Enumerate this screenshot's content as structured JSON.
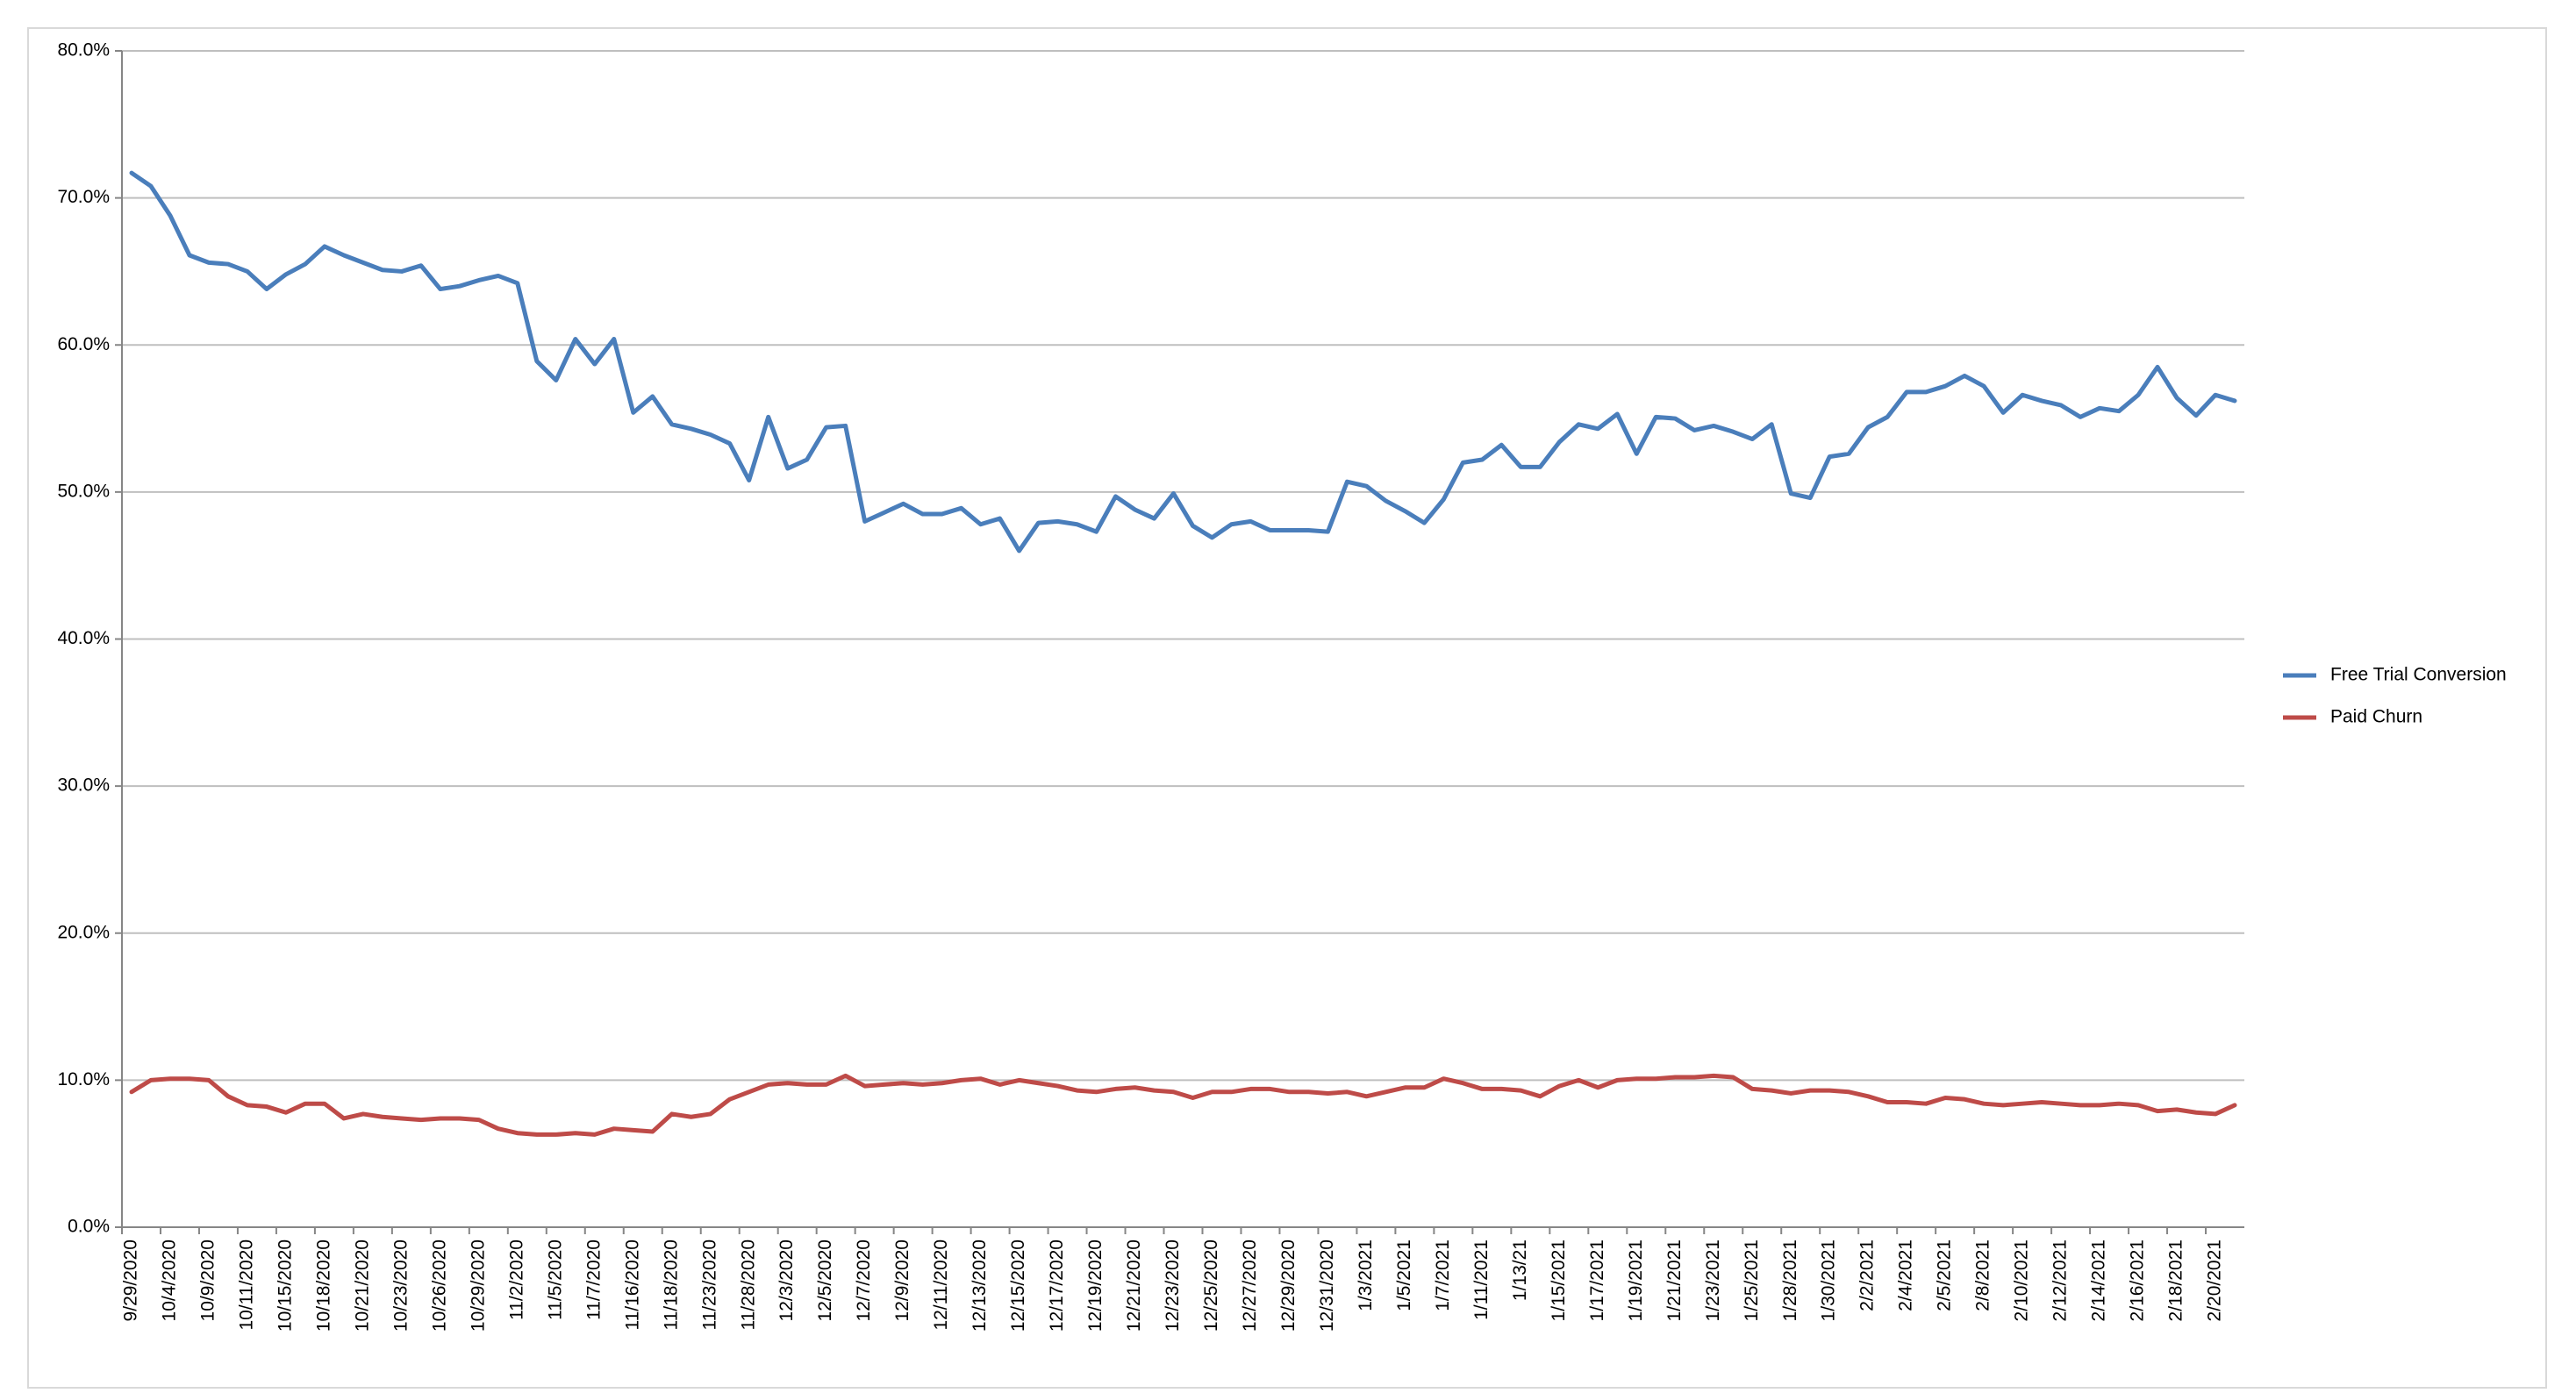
{
  "chart_data": {
    "type": "line",
    "categories": [
      "9/29/2020",
      null,
      "10/4/2020",
      null,
      "10/9/2020",
      null,
      "10/11/2020",
      null,
      "10/15/2020",
      null,
      "10/18/2020",
      null,
      "10/21/2020",
      null,
      "10/23/2020",
      null,
      "10/26/2020",
      null,
      "10/29/2020",
      null,
      "11/2/2020",
      null,
      "11/5/2020",
      null,
      "11/7/2020",
      null,
      "11/16/2020",
      null,
      "11/18/2020",
      null,
      "11/23/2020",
      null,
      "11/28/2020",
      null,
      "12/3/2020",
      null,
      "12/5/2020",
      null,
      "12/7/2020",
      null,
      "12/9/2020",
      null,
      "12/11/2020",
      null,
      "12/13/2020",
      null,
      "12/15/2020",
      null,
      "12/17/2020",
      null,
      "12/19/2020",
      null,
      "12/21/2020",
      null,
      "12/23/2020",
      null,
      "12/25/2020",
      null,
      "12/27/2020",
      null,
      "12/29/2020",
      null,
      "12/31/2020",
      null,
      "1/3/2021",
      null,
      "1/5/2021",
      null,
      "1/7/2021",
      null,
      "1/11/2021",
      null,
      "1/13/21",
      null,
      "1/15/2021",
      null,
      "1/17/2021",
      null,
      "1/19/2021",
      null,
      "1/21/2021",
      null,
      "1/23/2021",
      null,
      "1/25/2021",
      null,
      "1/28/2021",
      null,
      "1/30/2021",
      null,
      "2/2/2021",
      null,
      "2/4/2021",
      null,
      "2/5/2021",
      null,
      "2/8/2021",
      null,
      "2/10/2021",
      null,
      "2/12/2021",
      null,
      "2/14/2021",
      null,
      "2/16/2021",
      null,
      "2/18/2021",
      null,
      "2/20/2021",
      null
    ],
    "series": [
      {
        "name": "Free Trial Conversion",
        "color": "#4a7ebb",
        "values": [
          71.7,
          70.8,
          68.8,
          66.1,
          65.6,
          65.5,
          65.0,
          63.8,
          64.8,
          65.5,
          66.7,
          66.1,
          65.6,
          65.1,
          65.0,
          65.4,
          63.8,
          64.0,
          64.4,
          64.7,
          64.2,
          58.9,
          57.6,
          60.4,
          58.7,
          60.4,
          55.4,
          56.5,
          54.6,
          54.3,
          53.9,
          53.3,
          50.8,
          55.1,
          51.6,
          52.2,
          54.4,
          54.5,
          48.0,
          48.6,
          49.2,
          48.5,
          48.5,
          48.9,
          47.8,
          48.2,
          46.0,
          47.9,
          48.0,
          47.8,
          47.3,
          49.7,
          48.8,
          48.2,
          49.9,
          47.7,
          46.9,
          47.8,
          48.0,
          47.4,
          47.4,
          47.4,
          47.3,
          50.7,
          50.4,
          49.4,
          48.7,
          47.9,
          49.5,
          52.0,
          52.2,
          53.2,
          51.7,
          51.7,
          53.4,
          54.6,
          54.3,
          55.3,
          52.6,
          55.1,
          55.0,
          54.2,
          54.5,
          54.1,
          53.6,
          54.6,
          49.9,
          49.6,
          52.4,
          52.6,
          54.4,
          55.1,
          56.8,
          56.8,
          57.2,
          57.9,
          57.2,
          55.4,
          56.6,
          56.2,
          55.9,
          55.1,
          55.7,
          55.5,
          56.6,
          58.5,
          56.4,
          55.2,
          56.6,
          56.2
        ]
      },
      {
        "name": "Paid Churn",
        "color": "#be4b48",
        "values": [
          9.2,
          10.0,
          10.1,
          10.1,
          10.0,
          8.9,
          8.3,
          8.2,
          7.8,
          8.4,
          8.4,
          7.4,
          7.7,
          7.5,
          7.4,
          7.3,
          7.4,
          7.4,
          7.3,
          6.7,
          6.4,
          6.3,
          6.3,
          6.4,
          6.3,
          6.7,
          6.6,
          6.5,
          7.7,
          7.5,
          7.7,
          8.7,
          9.2,
          9.7,
          9.8,
          9.7,
          9.7,
          10.3,
          9.6,
          9.7,
          9.8,
          9.7,
          9.8,
          10.0,
          10.1,
          9.7,
          10.0,
          9.8,
          9.6,
          9.3,
          9.2,
          9.4,
          9.5,
          9.3,
          9.2,
          8.8,
          9.2,
          9.2,
          9.4,
          9.4,
          9.2,
          9.2,
          9.1,
          9.2,
          8.9,
          9.2,
          9.5,
          9.5,
          10.1,
          9.8,
          9.4,
          9.4,
          9.3,
          8.9,
          9.6,
          10.0,
          9.5,
          10.0,
          10.1,
          10.1,
          10.2,
          10.2,
          10.3,
          10.2,
          9.4,
          9.3,
          9.1,
          9.3,
          9.3,
          9.2,
          8.9,
          8.5,
          8.5,
          8.4,
          8.8,
          8.7,
          8.4,
          8.3,
          8.4,
          8.5,
          8.4,
          8.3,
          8.3,
          8.4,
          8.3,
          7.9,
          8.0,
          7.8,
          7.7,
          8.3
        ]
      }
    ],
    "ylim": [
      0,
      80
    ],
    "yticks": [
      {
        "value": 0,
        "label": "0.0%"
      },
      {
        "value": 10,
        "label": "10.0%"
      },
      {
        "value": 20,
        "label": "20.0%"
      },
      {
        "value": 30,
        "label": "30.0%"
      },
      {
        "value": 40,
        "label": "40.0%"
      },
      {
        "value": 50,
        "label": "50.0%"
      },
      {
        "value": 60,
        "label": "60.0%"
      },
      {
        "value": 70,
        "label": "70.0%"
      },
      {
        "value": 80,
        "label": "80.0%"
      }
    ],
    "grid": true,
    "legend": "right"
  }
}
